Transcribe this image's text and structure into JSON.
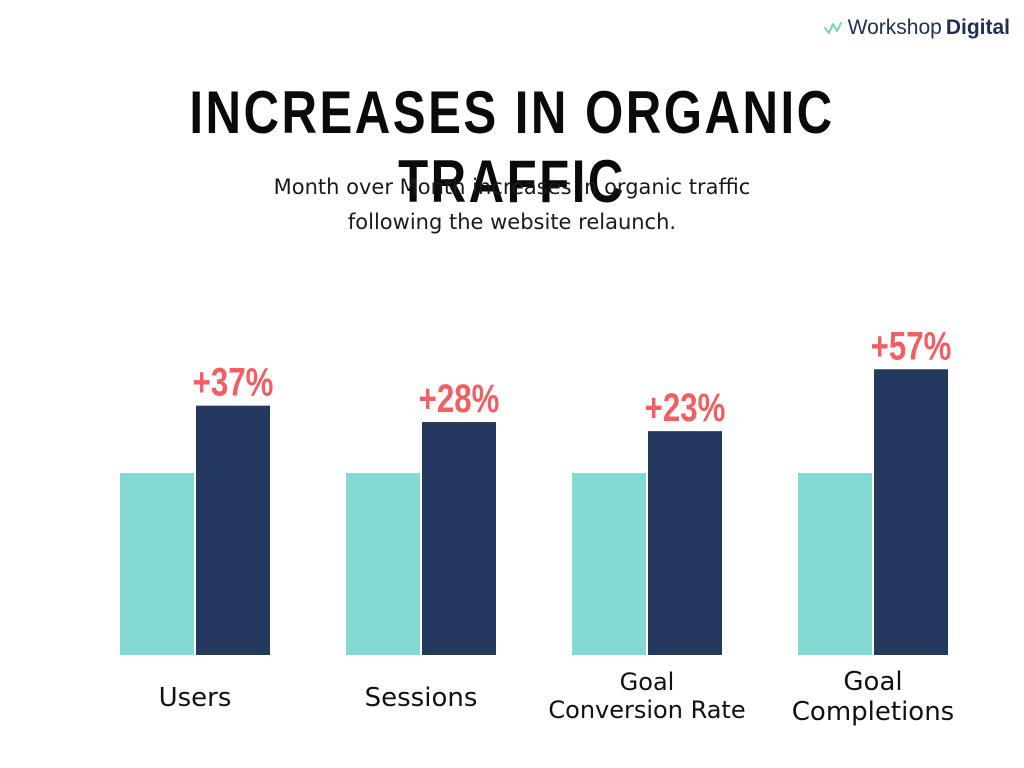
{
  "logo": {
    "light": "Workshop",
    "bold": "Digital",
    "icon": "wave-line-icon"
  },
  "title": "INCREASES IN ORGANIC TRAFFIC",
  "subtitle": [
    "Month over Month increases in organic traffic",
    "following the website relaunch."
  ],
  "colors": {
    "before": "#85d9d3",
    "after": "#233a5e",
    "label": "#ef5f64"
  },
  "chart_data": {
    "type": "bar",
    "categories": [
      [
        "Users"
      ],
      [
        "Sessions"
      ],
      [
        "Goal",
        "Conversion Rate"
      ],
      [
        "Goal",
        "Completions"
      ]
    ],
    "series": [
      {
        "values": [
          100,
          100,
          100,
          100
        ]
      },
      {
        "values": [
          137,
          128,
          123,
          157
        ]
      }
    ],
    "data_labels": [
      "+37%",
      "+28%",
      "+23%",
      "+57%"
    ],
    "legend": "none",
    "grid": false
  }
}
